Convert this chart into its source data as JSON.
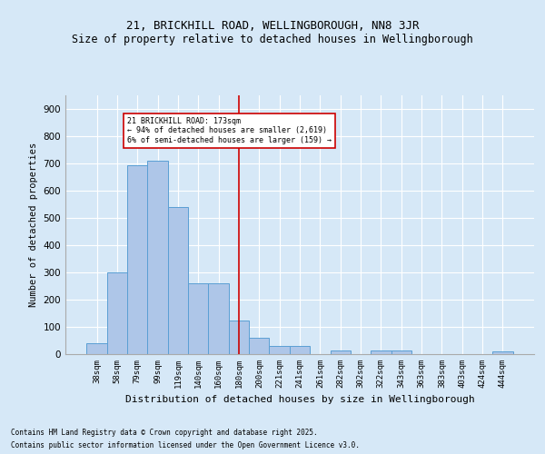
{
  "title1": "21, BRICKHILL ROAD, WELLINGBOROUGH, NN8 3JR",
  "title2": "Size of property relative to detached houses in Wellingborough",
  "xlabel": "Distribution of detached houses by size in Wellingborough",
  "ylabel": "Number of detached properties",
  "categories": [
    "38sqm",
    "58sqm",
    "79sqm",
    "99sqm",
    "119sqm",
    "140sqm",
    "160sqm",
    "180sqm",
    "200sqm",
    "221sqm",
    "241sqm",
    "261sqm",
    "282sqm",
    "302sqm",
    "322sqm",
    "343sqm",
    "363sqm",
    "383sqm",
    "403sqm",
    "424sqm",
    "444sqm"
  ],
  "values": [
    40,
    300,
    695,
    710,
    540,
    260,
    260,
    125,
    60,
    30,
    30,
    0,
    15,
    0,
    15,
    15,
    0,
    0,
    0,
    0,
    10
  ],
  "bar_color": "#aec6e8",
  "bar_edge_color": "#5a9fd4",
  "vline_x_idx": 7,
  "vline_color": "#cc0000",
  "annotation_text": "21 BRICKHILL ROAD: 173sqm\n← 94% of detached houses are smaller (2,619)\n6% of semi-detached houses are larger (159) →",
  "annotation_box_color": "#ffffff",
  "annotation_box_edge": "#cc0000",
  "ylim": [
    0,
    950
  ],
  "yticks": [
    0,
    100,
    200,
    300,
    400,
    500,
    600,
    700,
    800,
    900
  ],
  "footer1": "Contains HM Land Registry data © Crown copyright and database right 2025.",
  "footer2": "Contains public sector information licensed under the Open Government Licence v3.0.",
  "bg_color": "#d6e8f7",
  "plot_bg_color": "#d6e8f7",
  "grid_color": "#ffffff",
  "title1_fontsize": 9,
  "title2_fontsize": 8.5
}
